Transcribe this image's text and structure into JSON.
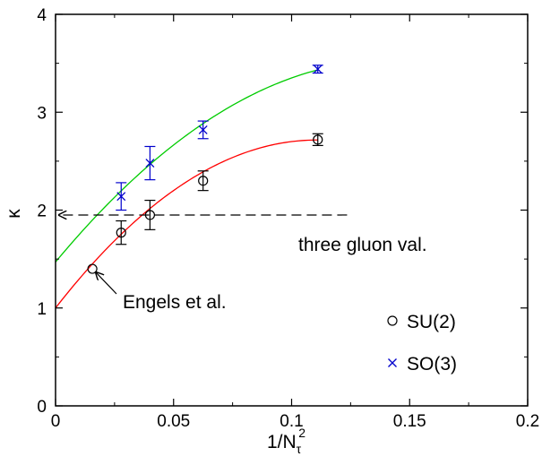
{
  "chart_data": {
    "type": "scatter",
    "title": "",
    "xlabel": "1/N",
    "xlabel_sub": "τ",
    "xlabel_sup": "2",
    "ylabel": "κ",
    "xlim": [
      0,
      0.2
    ],
    "ylim": [
      0,
      4
    ],
    "xticks": [
      0,
      0.05,
      0.1,
      0.15,
      0.2
    ],
    "xtick_labels": [
      "0",
      "0.05",
      "0.1",
      "0.15",
      "0.2"
    ],
    "yticks": [
      0,
      1,
      2,
      3,
      4
    ],
    "ytick_labels": [
      "0",
      "1",
      "2",
      "3",
      "4"
    ],
    "grid": false,
    "legend_position": "bottom-right",
    "series": [
      {
        "name": "SU(2)",
        "marker": "circle",
        "color": "#000000",
        "fit_color": "#ff0000",
        "points": [
          {
            "x": 0.0156,
            "y": 1.4,
            "err": 0.0
          },
          {
            "x": 0.0278,
            "y": 1.77,
            "err": 0.12
          },
          {
            "x": 0.04,
            "y": 1.95,
            "err": 0.15
          },
          {
            "x": 0.0625,
            "y": 2.3,
            "err": 0.1
          },
          {
            "x": 0.1111,
            "y": 2.72,
            "err": 0.06
          }
        ],
        "fit": {
          "a": 1.0,
          "b": 31.0,
          "c": -140.0
        }
      },
      {
        "name": "SO(3)",
        "marker": "x",
        "color": "#0000cc",
        "fit_color": "#00cc00",
        "points": [
          {
            "x": 0.0278,
            "y": 2.14,
            "err": 0.14
          },
          {
            "x": 0.04,
            "y": 2.48,
            "err": 0.17
          },
          {
            "x": 0.0625,
            "y": 2.82,
            "err": 0.09
          },
          {
            "x": 0.1111,
            "y": 3.44,
            "err": 0.04
          }
        ],
        "fit": {
          "a": 1.47,
          "b": 29.0,
          "c": -102.0
        }
      }
    ],
    "reference_line": {
      "y": 1.95,
      "x_end": 0.1235,
      "label": "three gluon val."
    },
    "annotations": [
      {
        "text": "Engels et al.",
        "target_x": 0.0156,
        "target_y": 1.4
      }
    ]
  },
  "fit_range": [
    0,
    0.1111
  ]
}
